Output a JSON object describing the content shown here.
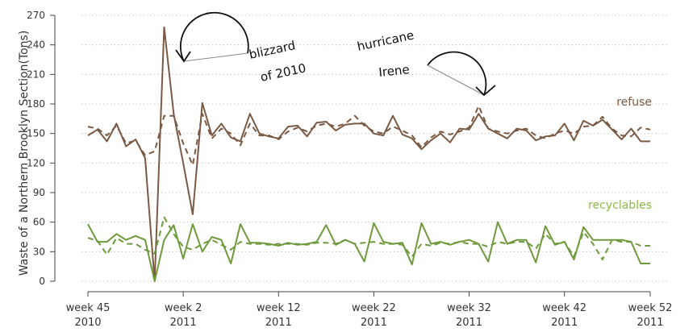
{
  "chart_data": {
    "type": "line",
    "ylabel": "Waste of a Northern Brooklyn Section(Tons)",
    "ylim": [
      0,
      270
    ],
    "yticks": [
      0,
      30,
      60,
      90,
      120,
      150,
      180,
      210,
      240,
      270
    ],
    "grid": "horizontal dotted",
    "x_ticks": [
      {
        "label": "week 45",
        "year": "2010",
        "index": 0
      },
      {
        "label": "week 2",
        "year": "2011",
        "index": 10
      },
      {
        "label": "week 12",
        "year": "2011",
        "index": 20
      },
      {
        "label": "week 22",
        "year": "2011",
        "index": 30
      },
      {
        "label": "week 32",
        "year": "2011",
        "index": 40
      },
      {
        "label": "week 42",
        "year": "2011",
        "index": 50
      },
      {
        "label": "week 52",
        "year": "2011",
        "index": 59
      }
    ],
    "series": [
      {
        "name": "refuse",
        "style": "solid",
        "color": "#7a5a44",
        "values": [
          148,
          154,
          142,
          160,
          137,
          144,
          125,
          0,
          258,
          170,
          120,
          68,
          181,
          148,
          160,
          146,
          142,
          170,
          150,
          147,
          145,
          157,
          158,
          147,
          161,
          162,
          153,
          159,
          160,
          160,
          150,
          148,
          168,
          149,
          145,
          134,
          143,
          150,
          141,
          155,
          154,
          170,
          155,
          150,
          145,
          155,
          153,
          143,
          147,
          148,
          160,
          143,
          163,
          158,
          164,
          154,
          144,
          155,
          142,
          142
        ],
        "label_color": "#7a5a44"
      },
      {
        "name": "",
        "style": "dashed",
        "color": "#7a5a44",
        "values": [
          157,
          155,
          148,
          158,
          140,
          143,
          128,
          132,
          168,
          168,
          140,
          118,
          170,
          145,
          155,
          150,
          138,
          160,
          148,
          148,
          144,
          152,
          156,
          152,
          158,
          160,
          157,
          160,
          168,
          158,
          152,
          150,
          157,
          153,
          148,
          136,
          146,
          152,
          149,
          152,
          156,
          178,
          155,
          152,
          150,
          153,
          155,
          148,
          145,
          150,
          153,
          150,
          157,
          158,
          167,
          155,
          148,
          147,
          156,
          154
        ]
      },
      {
        "name": "recyclables",
        "style": "solid",
        "color": "#6e9a3c",
        "values": [
          58,
          40,
          40,
          48,
          42,
          46,
          42,
          0,
          42,
          57,
          23,
          58,
          30,
          45,
          42,
          18,
          58,
          39,
          39,
          38,
          36,
          39,
          37,
          38,
          40,
          57,
          37,
          42,
          38,
          20,
          59,
          40,
          38,
          39,
          17,
          59,
          38,
          40,
          37,
          40,
          42,
          38,
          20,
          60,
          38,
          42,
          42,
          19,
          56,
          37,
          40,
          22,
          55,
          42,
          42,
          42,
          42,
          40,
          18,
          18
        ],
        "label_color": "#8fb84a"
      },
      {
        "name": "",
        "style": "dashed",
        "color": "#6e9a3c",
        "values": [
          44,
          41,
          27,
          44,
          38,
          38,
          32,
          28,
          65,
          48,
          35,
          32,
          38,
          42,
          37,
          32,
          40,
          38,
          38,
          37,
          38,
          38,
          38,
          37,
          39,
          39,
          38,
          42,
          38,
          39,
          40,
          38,
          38,
          37,
          25,
          38,
          36,
          39,
          38,
          40,
          38,
          38,
          35,
          40,
          38,
          40,
          40,
          33,
          48,
          38,
          40,
          25,
          50,
          38,
          22,
          42,
          40,
          40,
          36,
          36
        ]
      }
    ],
    "annotations": [
      {
        "line1": "blizzard",
        "line2": "of 2010"
      },
      {
        "line1": "hurricane",
        "line2": "Irene"
      }
    ]
  }
}
